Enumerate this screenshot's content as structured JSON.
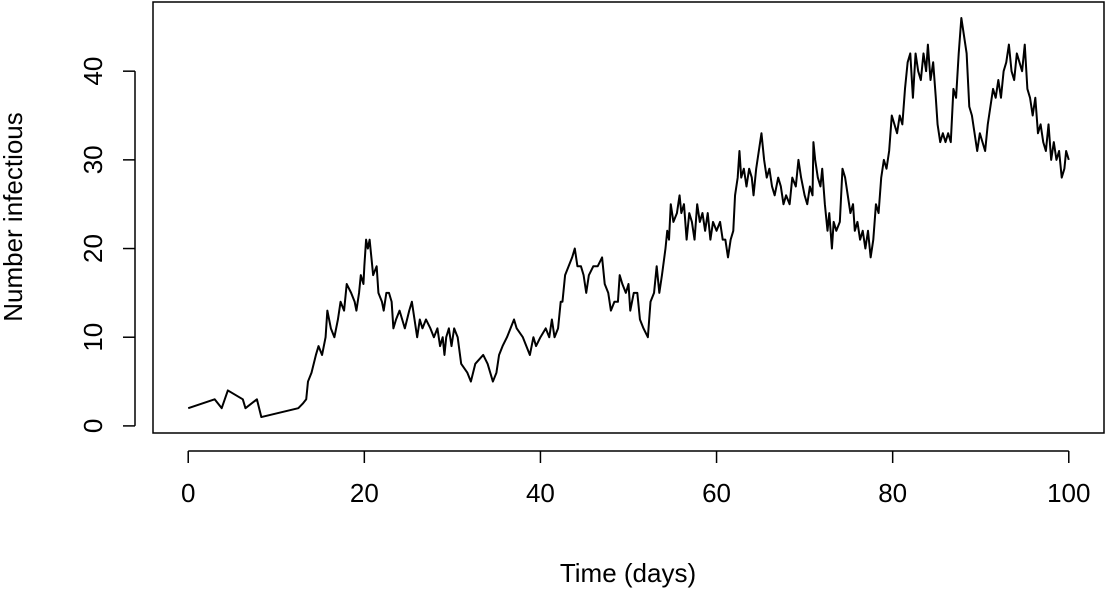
{
  "chart_data": {
    "type": "line",
    "xlabel": "Time (days)",
    "ylabel": "Number infectious",
    "color": "#000000",
    "xlim": [
      -4,
      104
    ],
    "ylim": [
      -0.8,
      47.8
    ],
    "xticks": [
      0,
      20,
      40,
      60,
      80,
      100
    ],
    "yticks": [
      0,
      10,
      20,
      30,
      40
    ],
    "x": [
      0,
      3,
      3.8,
      4.5,
      6.2,
      6.5,
      7.8,
      8.3,
      12.5,
      13,
      13.4,
      13.6,
      14,
      14.5,
      14.8,
      15.2,
      15.6,
      15.8,
      16.2,
      16.6,
      17,
      17.3,
      17.7,
      18,
      18.5,
      18.9,
      19.1,
      19.4,
      19.6,
      19.9,
      20,
      20.2,
      20.4,
      20.6,
      20.8,
      21,
      21.4,
      21.6,
      22,
      22.2,
      22.5,
      22.8,
      23.1,
      23.3,
      23.6,
      24,
      24.3,
      24.6,
      25.1,
      25.4,
      25.7,
      26,
      26.3,
      26.6,
      27,
      27.5,
      27.9,
      28.3,
      28.6,
      28.9,
      29.1,
      29.3,
      29.6,
      29.9,
      30.2,
      30.6,
      31,
      31.7,
      32.1,
      32.6,
      33.5,
      34,
      34.3,
      34.6,
      35,
      35.3,
      35.7,
      36.2,
      36.6,
      37,
      37.3,
      38,
      38.8,
      39.2,
      39.5,
      40,
      40.6,
      41,
      41.3,
      41.6,
      42,
      42.3,
      42.5,
      42.8,
      43.2,
      43.6,
      43.9,
      44.2,
      44.6,
      44.9,
      45.2,
      45.5,
      46,
      46.5,
      47,
      47.3,
      47.7,
      48,
      48.4,
      48.8,
      49,
      49.3,
      49.7,
      50,
      50.2,
      50.6,
      51,
      51.3,
      51.7,
      52.2,
      52.5,
      52.9,
      53.2,
      53.5,
      53.8,
      54.2,
      54.4,
      54.6,
      54.8,
      55.1,
      55.5,
      55.8,
      56,
      56.3,
      56.6,
      56.9,
      57.2,
      57.5,
      57.8,
      58.1,
      58.4,
      58.7,
      59,
      59.3,
      59.6,
      60,
      60.4,
      60.7,
      61,
      61.3,
      61.6,
      61.9,
      62.1,
      62.4,
      62.6,
      62.8,
      63.1,
      63.4,
      63.7,
      64,
      64.2,
      64.5,
      64.8,
      65.1,
      65.4,
      65.7,
      66,
      66.3,
      66.6,
      67,
      67.3,
      67.6,
      67.9,
      68.3,
      68.6,
      69,
      69.3,
      69.6,
      70,
      70.3,
      70.6,
      70.9,
      71,
      71.2,
      71.5,
      71.8,
      72,
      72.3,
      72.6,
      72.8,
      73.1,
      73.3,
      73.6,
      74,
      74.3,
      74.6,
      74.9,
      75.2,
      75.5,
      75.7,
      76,
      76.3,
      76.6,
      76.9,
      77.2,
      77.5,
      77.8,
      78.1,
      78.4,
      78.7,
      79,
      79.3,
      79.6,
      79.9,
      80.2,
      80.5,
      80.8,
      81.1,
      81.4,
      81.7,
      82,
      82.3,
      82.6,
      82.9,
      83.2,
      83.5,
      83.8,
      84,
      84.3,
      84.6,
      84.9,
      85.1,
      85.4,
      85.7,
      86,
      86.3,
      86.6,
      86.9,
      87.2,
      87.5,
      87.8,
      88.1,
      88.4,
      88.7,
      89,
      89.3,
      89.6,
      89.9,
      90.2,
      90.5,
      90.8,
      91.1,
      91.4,
      91.7,
      92,
      92.3,
      92.6,
      92.9,
      93.2,
      93.5,
      93.8,
      94.1,
      94.4,
      94.7,
      95,
      95.3,
      95.6,
      95.9,
      96.2,
      96.5,
      96.8,
      97.1,
      97.4,
      97.7,
      98,
      98.3,
      98.6,
      98.9,
      99.2,
      99.5,
      99.7,
      100
    ],
    "values": [
      2,
      3,
      2,
      4,
      3,
      2,
      3,
      1,
      2,
      2.5,
      3,
      5,
      6,
      8,
      9,
      8,
      10,
      13,
      11,
      10,
      12,
      14,
      13,
      16,
      15,
      14,
      13,
      15,
      17,
      16,
      18,
      21,
      20,
      21,
      19,
      17,
      18,
      15,
      14,
      13,
      15,
      15,
      14,
      11,
      12,
      13,
      12,
      11,
      13,
      14,
      12,
      10,
      12,
      11,
      12,
      11,
      10,
      11,
      9,
      10,
      8,
      10,
      11,
      9,
      11,
      10,
      7,
      6,
      5,
      7,
      8,
      7,
      6,
      5,
      6,
      8,
      9,
      10,
      11,
      12,
      11,
      10,
      8,
      10,
      9,
      10,
      11,
      10,
      12,
      10,
      11,
      14,
      14,
      17,
      18,
      19,
      20,
      18,
      18,
      17,
      15,
      17,
      18,
      18,
      19,
      16,
      15,
      13,
      14,
      14,
      17,
      16,
      15,
      16,
      13,
      15,
      15,
      12,
      11,
      10,
      14,
      15,
      18,
      15,
      17,
      20,
      22,
      21,
      25,
      23,
      24,
      26,
      24,
      25,
      21,
      24,
      23,
      21,
      25,
      23,
      24,
      22,
      24,
      21,
      23,
      22,
      23,
      21,
      21,
      19,
      21,
      22,
      26,
      28,
      31,
      28,
      29,
      27,
      29,
      28,
      26,
      29,
      31,
      33,
      30,
      28,
      29,
      27,
      26,
      28,
      27,
      25,
      26,
      25,
      28,
      27,
      30,
      28,
      26,
      25,
      27,
      26,
      32,
      30,
      28,
      27,
      29,
      25,
      22,
      24,
      20,
      23,
      22,
      23,
      29,
      28,
      26,
      24,
      25,
      22,
      23,
      21,
      22,
      20,
      22,
      19,
      21,
      25,
      24,
      28,
      30,
      29,
      31,
      35,
      34,
      33,
      35,
      34,
      38,
      41,
      42,
      37,
      42,
      40,
      39,
      42,
      40,
      43,
      39,
      41,
      37,
      34,
      32,
      33,
      32,
      33,
      32,
      38,
      37,
      42,
      46,
      44,
      42,
      36,
      35,
      33,
      31,
      33,
      32,
      31,
      34,
      36,
      38,
      37,
      39,
      37,
      40,
      41,
      43,
      40,
      39,
      42,
      41,
      40,
      43,
      38,
      37,
      35,
      37,
      33,
      34,
      32,
      31,
      34,
      30,
      32,
      30,
      31,
      28,
      29,
      31,
      30
    ]
  }
}
